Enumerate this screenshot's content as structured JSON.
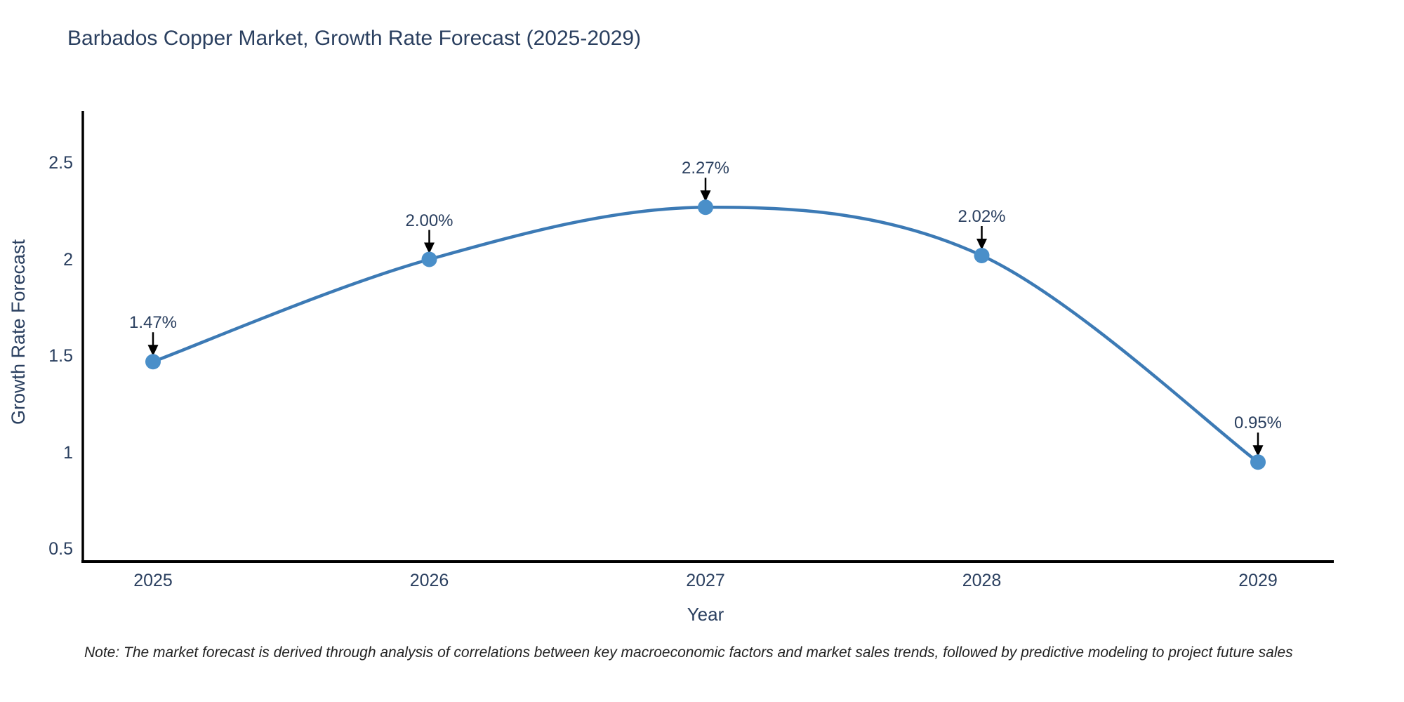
{
  "page": {
    "background": "#ffffff"
  },
  "title": "Barbados Copper Market, Growth Rate Forecast (2025-2029)",
  "note": "Note: The market forecast is derived through analysis of correlations between key macroeconomic factors and market sales trends, followed by predictive modeling to project future sales",
  "chart_data": {
    "type": "line",
    "line_shape": "spline",
    "title": "Barbados Copper Market, Growth Rate Forecast (2025-2029)",
    "xlabel": "Year",
    "ylabel": "Growth Rate Forecast",
    "categories": [
      "2025",
      "2026",
      "2027",
      "2028",
      "2029"
    ],
    "values": [
      1.47,
      2.0,
      2.27,
      2.02,
      0.95
    ],
    "point_labels": [
      "1.47%",
      "2.00%",
      "2.27%",
      "2.02%",
      "0.95%"
    ],
    "yticks": [
      0.5,
      1,
      1.5,
      2,
      2.5
    ],
    "ylim": [
      0.43,
      2.76
    ],
    "grid": false,
    "legend": "none",
    "annotations_have_arrows": true,
    "colors": {
      "line": "#3c7ab5",
      "marker": "#4a8fc9",
      "arrow": "#000000",
      "axis_line": "#000000",
      "text": "#2a3f5f",
      "note_text": "#222222"
    }
  }
}
